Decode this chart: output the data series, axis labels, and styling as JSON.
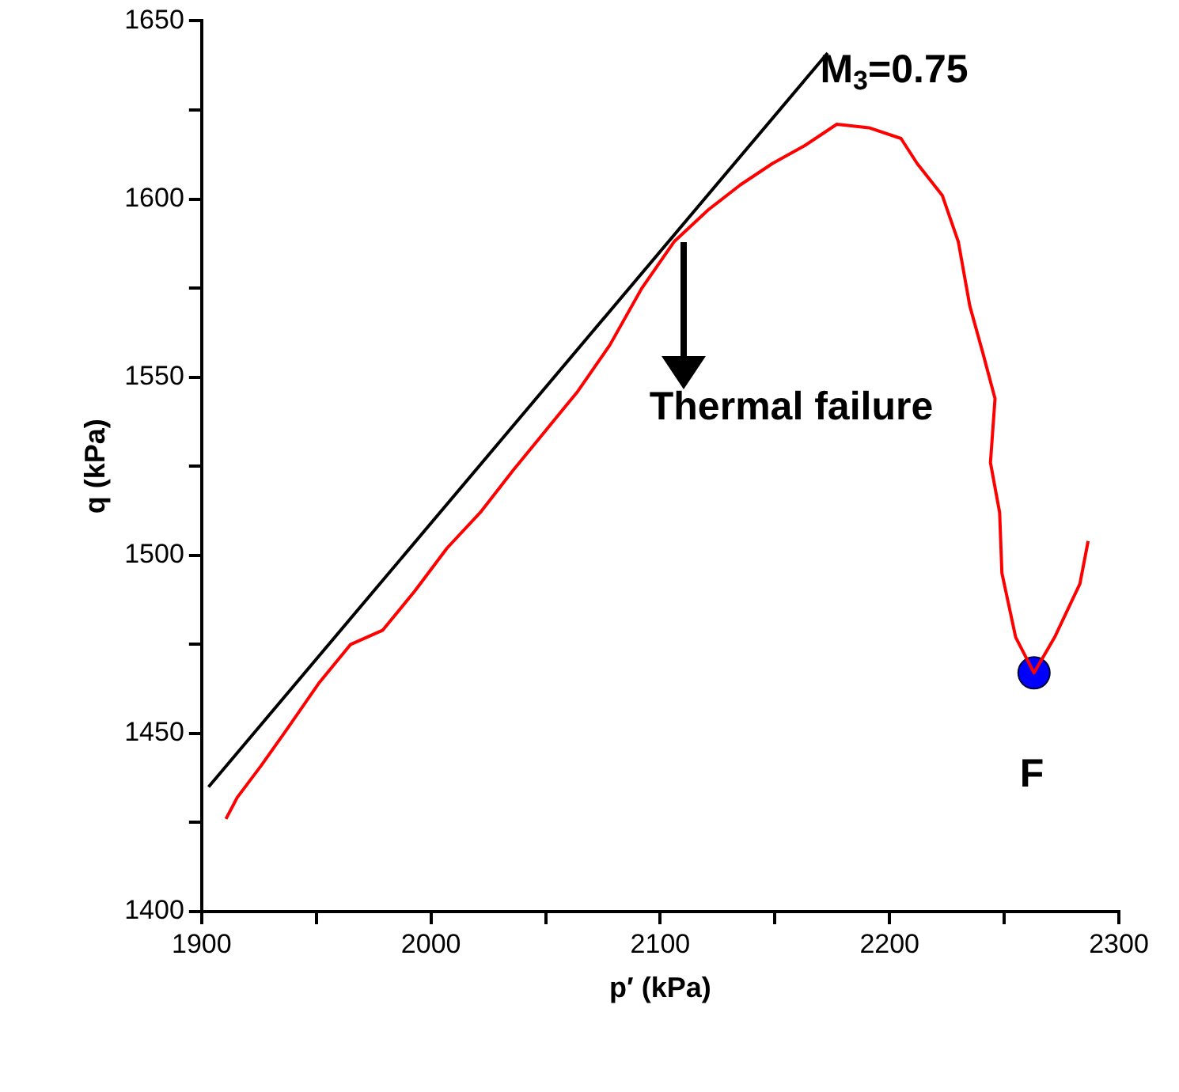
{
  "chart_data": {
    "type": "line",
    "xlabel": "p′ (kPa)",
    "ylabel": "q (kPa)",
    "xlim": [
      1900,
      2300
    ],
    "ylim": [
      1400,
      1650
    ],
    "xticks": [
      1900,
      {
        "value": 1950,
        "label": null
      },
      2000,
      {
        "value": 2050,
        "label": null
      },
      2100,
      {
        "value": 2150,
        "label": null
      },
      2200,
      {
        "value": 2250,
        "label": null
      },
      2300
    ],
    "yticks": [
      1400,
      {
        "value": 1425,
        "label": null
      },
      1450,
      {
        "value": 1475,
        "label": null
      },
      1500,
      {
        "value": 1525,
        "label": null
      },
      1550,
      {
        "value": 1575,
        "label": null
      },
      1600,
      {
        "value": 1625,
        "label": null
      },
      1650
    ],
    "grid": false,
    "legend": false,
    "marker": "none",
    "line_style": "solid",
    "series": [
      {
        "color": "#ff0000",
        "x": [
          1910.6,
          1915.5,
          1926,
          1937,
          1951,
          1965,
          1979,
          1993,
          2007,
          2021.5,
          2036,
          2050,
          2064,
          2078,
          2092,
          2106,
          2121,
          2135,
          2149,
          2163,
          2177,
          2191,
          2205,
          2212,
          2223,
          2230,
          2235,
          2240.6,
          2246,
          2244,
          2248,
          2249,
          2255,
          2263,
          2272,
          2283,
          2286.6
        ],
        "values": [
          1426,
          1432,
          1441,
          1451,
          1464,
          1475,
          1479,
          1490,
          1502,
          1512,
          1524,
          1535,
          1546,
          1559,
          1575,
          1588,
          1597,
          1604,
          1610,
          1615,
          1621,
          1620,
          1617,
          1610,
          1601,
          1588,
          1570,
          1557,
          1544,
          1526,
          1512,
          1495,
          1477,
          1467,
          1477,
          1492,
          1504
        ]
      },
      {
        "color": "#000000",
        "x": [
          1903,
          2173
        ],
        "values": [
          1435,
          1641
        ]
      },
      {
        "type": "scatter",
        "color": "#0000ff",
        "marker": "circle",
        "x": [
          2263
        ],
        "values": [
          1467
        ]
      }
    ],
    "annotations": [
      "M$_{3}$=0.75",
      "Thermal failure",
      "F"
    ]
  }
}
